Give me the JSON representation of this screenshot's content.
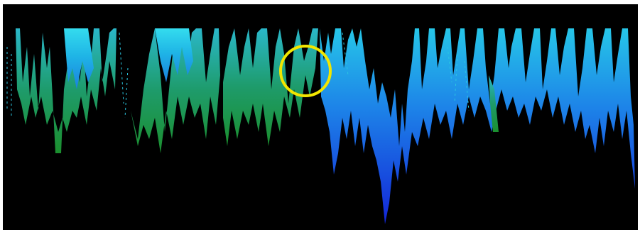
{
  "image": {
    "background_color": "#000000",
    "page_color": "#ffffff",
    "gradient_colors": {
      "top": "#1fd1e8",
      "upper": "#26b8e0",
      "green": "#1f9a3a",
      "deep_blue": "#1427d6"
    },
    "annotation": {
      "shape": "circle",
      "color": "#f2e600"
    }
  }
}
